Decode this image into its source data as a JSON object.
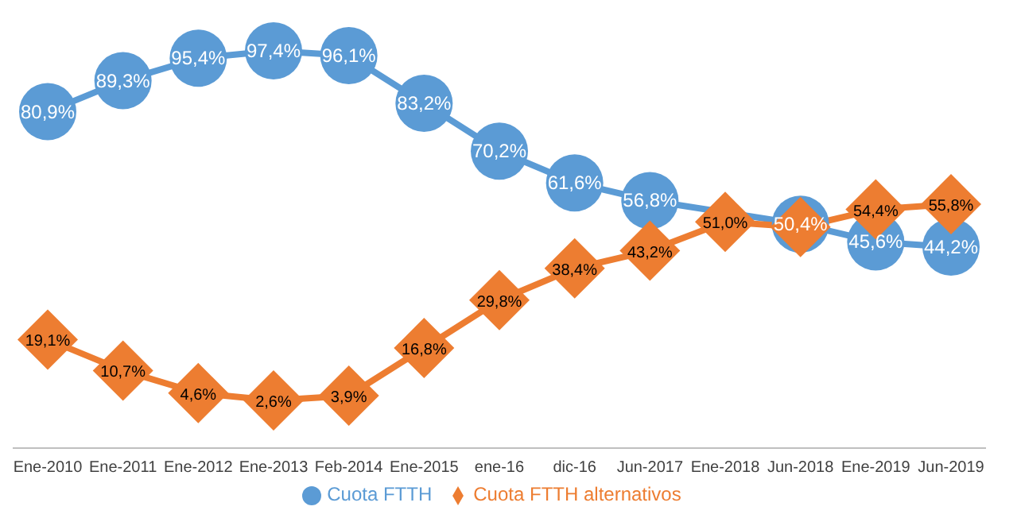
{
  "chart_data": {
    "type": "line",
    "categories": [
      "Ene-2010",
      "Ene-2011",
      "Ene-2012",
      "Ene-2013",
      "Feb-2014",
      "Ene-2015",
      "ene-16",
      "dic-16",
      "Jun-2017",
      "Ene-2018",
      "Jun-2018",
      "Ene-2019",
      "Jun-2019"
    ],
    "series": [
      {
        "name": "Cuota FTTH",
        "color": "#5b9bd5",
        "marker": "circle",
        "values": [
          80.9,
          89.3,
          95.4,
          97.4,
          96.1,
          83.2,
          70.2,
          61.6,
          56.8,
          null,
          50.4,
          45.6,
          44.2
        ],
        "value_labels": [
          "80,9%",
          "89,3%",
          "95,4%",
          "97,4%",
          "96,1%",
          "83,2%",
          "70,2%",
          "61,6%",
          "56,8%",
          null,
          "50,4%",
          "45,6%",
          "44,2%"
        ]
      },
      {
        "name": "Cuota FTTH alternativos",
        "color": "#ed7d31",
        "marker": "diamond",
        "values": [
          19.1,
          10.7,
          4.6,
          2.6,
          3.9,
          16.8,
          29.8,
          38.4,
          43.2,
          51.0,
          49.6,
          54.4,
          55.8
        ],
        "value_labels": [
          "19,1%",
          "10,7%",
          "4,6%",
          "2,6%",
          "3,9%",
          "16,8%",
          "29,8%",
          "38,4%",
          "43,2%",
          "51,0%",
          null,
          "54,4%",
          "55,8%"
        ]
      }
    ],
    "tick_labels": "x",
    "line_style": "solid",
    "legend": "bottom"
  }
}
